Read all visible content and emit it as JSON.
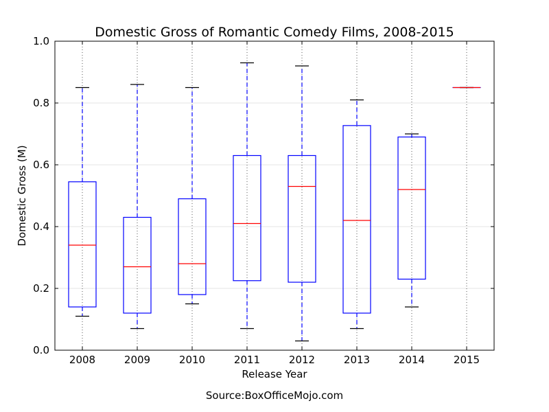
{
  "chart_data": {
    "type": "box",
    "title": "Domestic Gross of Romantic Comedy Films, 2008-2015",
    "xlabel": "Release Year",
    "ylabel": "Domestic Gross (M)",
    "ylim": [
      0.0,
      1.0
    ],
    "yticks": [
      "0.0",
      "0.2",
      "0.4",
      "0.6",
      "0.8",
      "1.0"
    ],
    "categories": [
      "2008",
      "2009",
      "2010",
      "2011",
      "2012",
      "2013",
      "2014",
      "2015"
    ],
    "boxes": [
      {
        "min": 0.11,
        "q1": 0.14,
        "median": 0.34,
        "q3": 0.545,
        "max": 0.85
      },
      {
        "min": 0.07,
        "q1": 0.12,
        "median": 0.27,
        "q3": 0.43,
        "max": 0.86
      },
      {
        "min": 0.15,
        "q1": 0.18,
        "median": 0.28,
        "q3": 0.49,
        "max": 0.85
      },
      {
        "min": 0.07,
        "q1": 0.225,
        "median": 0.41,
        "q3": 0.63,
        "max": 0.93
      },
      {
        "min": 0.03,
        "q1": 0.22,
        "median": 0.53,
        "q3": 0.63,
        "max": 0.92
      },
      {
        "min": 0.07,
        "q1": 0.12,
        "median": 0.42,
        "q3": 0.727,
        "max": 0.81
      },
      {
        "min": 0.14,
        "q1": 0.23,
        "median": 0.52,
        "q3": 0.69,
        "max": 0.7
      },
      {
        "min": 0.85,
        "q1": 0.85,
        "median": 0.85,
        "q3": 0.85,
        "max": 0.85
      }
    ],
    "grid": "vertical dotted at categories; faint horizontal at y ticks",
    "colors": {
      "box": "#0000ff",
      "median": "#ff0000",
      "whisker_cap": "#000000",
      "grid": "#555555"
    }
  },
  "footer": {
    "source": "Source:BoxOfficeMojo.com"
  }
}
